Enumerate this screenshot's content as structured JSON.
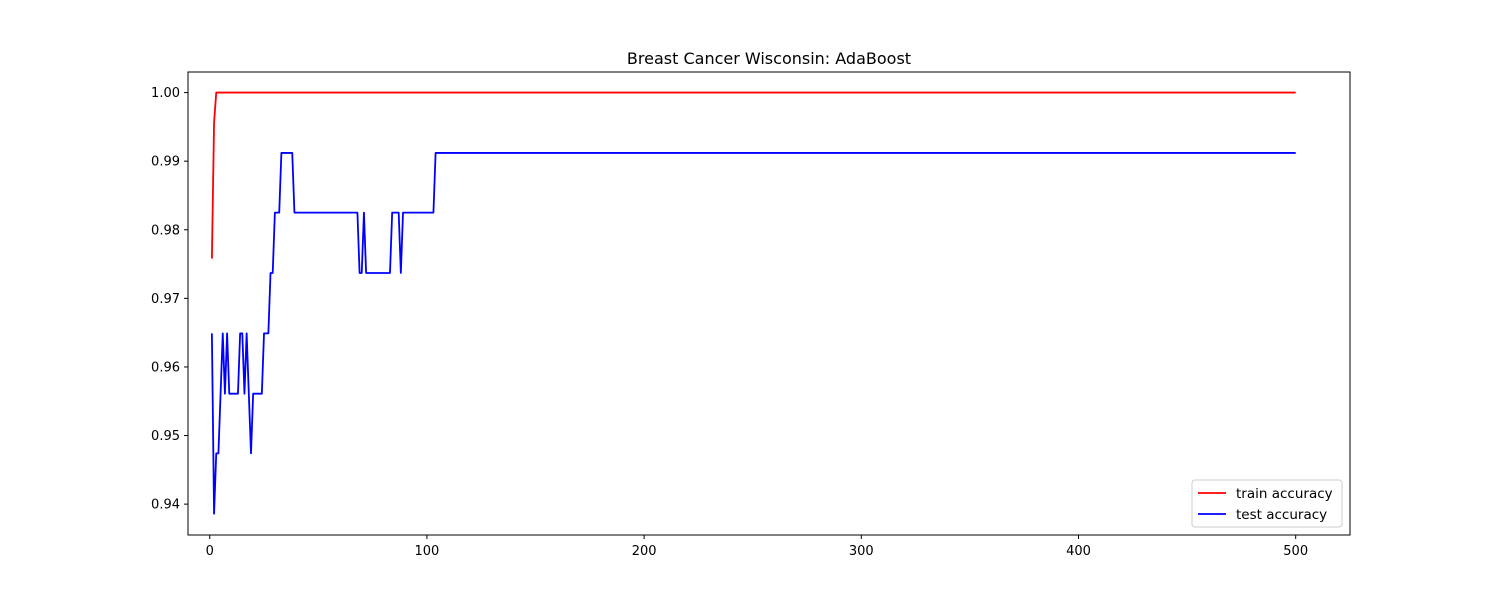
{
  "chart_data": {
    "type": "line",
    "title": "Breast Cancer Wisconsin: AdaBoost",
    "xlabel": "",
    "ylabel": "",
    "xlim": [
      -10,
      525
    ],
    "ylim": [
      0.9355,
      1.003
    ],
    "xticks": [
      0,
      100,
      200,
      300,
      400,
      500
    ],
    "yticks": [
      0.94,
      0.95,
      0.96,
      0.97,
      0.98,
      0.99,
      1.0
    ],
    "ytick_labels": [
      "0.94",
      "0.95",
      "0.96",
      "0.97",
      "0.98",
      "0.99",
      "1.00"
    ],
    "grid": false,
    "legend_position": "lower-right",
    "series": [
      {
        "name": "train accuracy",
        "color": "#ff0000",
        "points": [
          [
            1,
            0.9758
          ],
          [
            2,
            0.9956
          ],
          [
            3,
            1.0
          ],
          [
            500,
            1.0
          ]
        ]
      },
      {
        "name": "test accuracy",
        "color": "#0000ff",
        "points": [
          [
            1,
            0.9649
          ],
          [
            2,
            0.9386
          ],
          [
            3,
            0.9474
          ],
          [
            4,
            0.9474
          ],
          [
            5,
            0.9561
          ],
          [
            6,
            0.9649
          ],
          [
            7,
            0.9561
          ],
          [
            8,
            0.9649
          ],
          [
            9,
            0.9561
          ],
          [
            10,
            0.9561
          ],
          [
            11,
            0.9561
          ],
          [
            12,
            0.9561
          ],
          [
            13,
            0.9561
          ],
          [
            14,
            0.9649
          ],
          [
            15,
            0.9649
          ],
          [
            16,
            0.9561
          ],
          [
            17,
            0.9649
          ],
          [
            18,
            0.9561
          ],
          [
            19,
            0.9474
          ],
          [
            20,
            0.9561
          ],
          [
            21,
            0.9561
          ],
          [
            22,
            0.9561
          ],
          [
            23,
            0.9561
          ],
          [
            24,
            0.9561
          ],
          [
            25,
            0.9649
          ],
          [
            26,
            0.9649
          ],
          [
            27,
            0.9649
          ],
          [
            28,
            0.9737
          ],
          [
            29,
            0.9737
          ],
          [
            30,
            0.9825
          ],
          [
            31,
            0.9825
          ],
          [
            32,
            0.9825
          ],
          [
            33,
            0.9912
          ],
          [
            34,
            0.9912
          ],
          [
            35,
            0.9912
          ],
          [
            36,
            0.9912
          ],
          [
            37,
            0.9912
          ],
          [
            38,
            0.9912
          ],
          [
            39,
            0.9825
          ],
          [
            40,
            0.9825
          ],
          [
            50,
            0.9825
          ],
          [
            60,
            0.9825
          ],
          [
            68,
            0.9825
          ],
          [
            69,
            0.9737
          ],
          [
            70,
            0.9737
          ],
          [
            71,
            0.9825
          ],
          [
            72,
            0.9737
          ],
          [
            75,
            0.9737
          ],
          [
            80,
            0.9737
          ],
          [
            83,
            0.9737
          ],
          [
            84,
            0.9825
          ],
          [
            85,
            0.9825
          ],
          [
            87,
            0.9825
          ],
          [
            88,
            0.9737
          ],
          [
            89,
            0.9825
          ],
          [
            95,
            0.9825
          ],
          [
            102,
            0.9825
          ],
          [
            103,
            0.9825
          ],
          [
            104,
            0.9912
          ],
          [
            200,
            0.9912
          ],
          [
            300,
            0.9912
          ],
          [
            400,
            0.9912
          ],
          [
            500,
            0.9912
          ]
        ]
      }
    ]
  }
}
